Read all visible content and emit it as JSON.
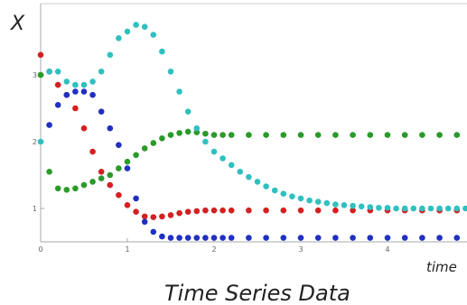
{
  "chart_data": {
    "type": "scatter",
    "title": "Time Series Data",
    "xlabel": "time",
    "ylabel": "X",
    "xlim": [
      0,
      4.9
    ],
    "ylim": [
      0.5,
      3.35
    ],
    "x_ticks": [
      "0",
      "1",
      "2",
      "3",
      "4"
    ],
    "y_ticks": [
      "1",
      "2",
      "3"
    ],
    "grid": false,
    "series": [
      {
        "color": "#d42020",
        "x": [
          0,
          0.1,
          0.2,
          0.3,
          0.4,
          0.5,
          0.6,
          0.7,
          0.8,
          0.9,
          1.0,
          1.1,
          1.2,
          1.3,
          1.4,
          1.5,
          1.6,
          1.7,
          1.8,
          1.9,
          2.0,
          2.1,
          2.2,
          2.4,
          2.6,
          2.8,
          3.0,
          3.2,
          3.4,
          3.6,
          3.8,
          4.0,
          4.2,
          4.4,
          4.6,
          4.8
        ],
        "values": [
          3.3,
          3.05,
          2.85,
          2.7,
          2.5,
          2.2,
          1.85,
          1.55,
          1.35,
          1.2,
          1.05,
          0.95,
          0.88,
          0.87,
          0.88,
          0.9,
          0.93,
          0.95,
          0.96,
          0.97,
          0.97,
          0.97,
          0.97,
          0.97,
          0.97,
          0.97,
          0.97,
          0.97,
          0.97,
          0.97,
          0.97,
          0.97,
          0.97,
          0.97,
          0.97,
          0.97
        ]
      },
      {
        "color": "#2030c0",
        "x": [
          0.1,
          0.2,
          0.3,
          0.4,
          0.5,
          0.6,
          0.7,
          0.8,
          0.9,
          1.0,
          1.1,
          1.2,
          1.3,
          1.4,
          1.5,
          1.6,
          1.7,
          1.8,
          1.9,
          2.0,
          2.1,
          2.2,
          2.4,
          2.6,
          2.8,
          3.0,
          3.2,
          3.4,
          3.6,
          3.8,
          4.0,
          4.2,
          4.4,
          4.6,
          4.8
        ],
        "values": [
          2.25,
          2.55,
          2.7,
          2.75,
          2.75,
          2.7,
          2.45,
          2.2,
          1.95,
          1.6,
          1.15,
          0.8,
          0.65,
          0.58,
          0.56,
          0.56,
          0.56,
          0.56,
          0.56,
          0.56,
          0.56,
          0.56,
          0.56,
          0.56,
          0.56,
          0.56,
          0.56,
          0.56,
          0.56,
          0.56,
          0.56,
          0.56,
          0.56,
          0.56,
          0.56
        ]
      },
      {
        "color": "#2a9a2a",
        "x": [
          0,
          0.1,
          0.2,
          0.3,
          0.4,
          0.5,
          0.6,
          0.7,
          0.8,
          0.9,
          1.0,
          1.1,
          1.2,
          1.3,
          1.4,
          1.5,
          1.6,
          1.7,
          1.8,
          1.9,
          2.0,
          2.1,
          2.2,
          2.4,
          2.6,
          2.8,
          3.0,
          3.2,
          3.4,
          3.6,
          3.8,
          4.0,
          4.2,
          4.4,
          4.6,
          4.8
        ],
        "values": [
          3.0,
          1.55,
          1.3,
          1.28,
          1.3,
          1.35,
          1.4,
          1.45,
          1.5,
          1.6,
          1.7,
          1.8,
          1.9,
          1.98,
          2.05,
          2.1,
          2.13,
          2.15,
          2.14,
          2.12,
          2.1,
          2.1,
          2.1,
          2.1,
          2.1,
          2.1,
          2.1,
          2.1,
          2.1,
          2.1,
          2.1,
          2.1,
          2.1,
          2.1,
          2.1,
          2.1
        ]
      },
      {
        "color": "#30c0c0",
        "x": [
          0,
          0.1,
          0.2,
          0.3,
          0.4,
          0.5,
          0.6,
          0.7,
          0.8,
          0.9,
          1.0,
          1.1,
          1.2,
          1.3,
          1.4,
          1.5,
          1.6,
          1.7,
          1.8,
          1.9,
          2.0,
          2.1,
          2.2,
          2.3,
          2.4,
          2.5,
          2.6,
          2.7,
          2.8,
          2.9,
          3.0,
          3.1,
          3.2,
          3.3,
          3.4,
          3.5,
          3.6,
          3.7,
          3.8,
          3.9,
          4.0,
          4.1,
          4.2,
          4.3,
          4.4,
          4.5,
          4.6,
          4.7,
          4.8,
          4.9
        ],
        "values": [
          2.0,
          3.05,
          3.05,
          2.9,
          2.85,
          2.85,
          2.9,
          3.05,
          3.3,
          3.55,
          3.65,
          3.75,
          3.72,
          3.6,
          3.35,
          3.05,
          2.75,
          2.45,
          2.2,
          2.0,
          1.85,
          1.75,
          1.65,
          1.55,
          1.47,
          1.4,
          1.33,
          1.27,
          1.22,
          1.18,
          1.15,
          1.12,
          1.1,
          1.08,
          1.06,
          1.05,
          1.04,
          1.03,
          1.02,
          1.01,
          1.01,
          1.0,
          1.0,
          1.0,
          1.0,
          1.0,
          1.0,
          1.0,
          1.0,
          1.0
        ]
      }
    ]
  }
}
